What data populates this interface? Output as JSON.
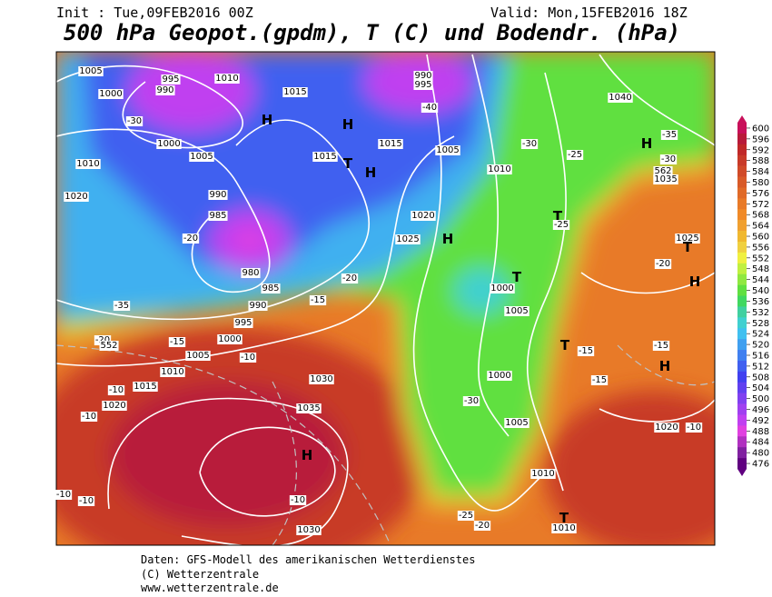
{
  "header": {
    "init": "Init : Tue,09FEB2016 00Z",
    "valid": "Valid: Mon,15FEB2016 18Z",
    "title": "500 hPa Geopot.(gpdm), T (C) und Bodendr. (hPa)"
  },
  "map_labels": [
    "1005",
    "1000",
    "995",
    "990",
    "1010",
    "1015",
    "H",
    "1000",
    "1005",
    "1010",
    "1020",
    "990",
    "985",
    "980",
    "985",
    "990",
    "995",
    "1000",
    "1005",
    "1010",
    "1015",
    "1020",
    "-30",
    "-35",
    "-20",
    "990",
    "995",
    "-40",
    "H",
    "H",
    "T",
    "1015",
    "1015",
    "1005",
    "1010",
    "1020",
    "1025",
    "H",
    "T",
    "1000",
    "1005",
    "1000",
    "-30",
    "1005",
    "1010",
    "T",
    "1010",
    "-20",
    "-25",
    "1030",
    "1035",
    "H",
    "-10",
    "1030",
    "1040",
    "H",
    "-35",
    "-30",
    "562",
    "1035",
    "1025",
    "T",
    "H",
    "-20",
    "-15",
    "H",
    "-15",
    "-15",
    "T",
    "1020",
    "-10",
    "-25",
    "-30",
    "T",
    "-25",
    "-20",
    "-15",
    "-10",
    "-15",
    "-10",
    "-10",
    "-10",
    "-10",
    "-20",
    "552"
  ],
  "legend": {
    "values": [
      600,
      596,
      592,
      588,
      584,
      580,
      576,
      572,
      568,
      564,
      560,
      556,
      552,
      548,
      544,
      540,
      536,
      532,
      528,
      524,
      520,
      516,
      512,
      508,
      504,
      500,
      496,
      492,
      488,
      484,
      480,
      476
    ],
    "colors": [
      "#c8105a",
      "#b81a3a",
      "#c02828",
      "#c83a28",
      "#d04a28",
      "#d85a28",
      "#e06a28",
      "#e87a28",
      "#f08a28",
      "#f0a030",
      "#f0b830",
      "#f0d040",
      "#f0f040",
      "#c0f040",
      "#90e840",
      "#60e040",
      "#40d860",
      "#40d0a0",
      "#40d0d0",
      "#40c0f0",
      "#40a0f0",
      "#4080f0",
      "#4060f0",
      "#4040f0",
      "#6040f0",
      "#8040f0",
      "#a040f0",
      "#c040f0",
      "#e040e0",
      "#b030c0",
      "#8020a0",
      "#600080"
    ]
  },
  "footer": {
    "line1": "Daten: GFS-Modell des amerikanischen Wetterdienstes",
    "line2": "(C) Wetterzentrale",
    "line3": "www.wetterzentrale.de"
  }
}
